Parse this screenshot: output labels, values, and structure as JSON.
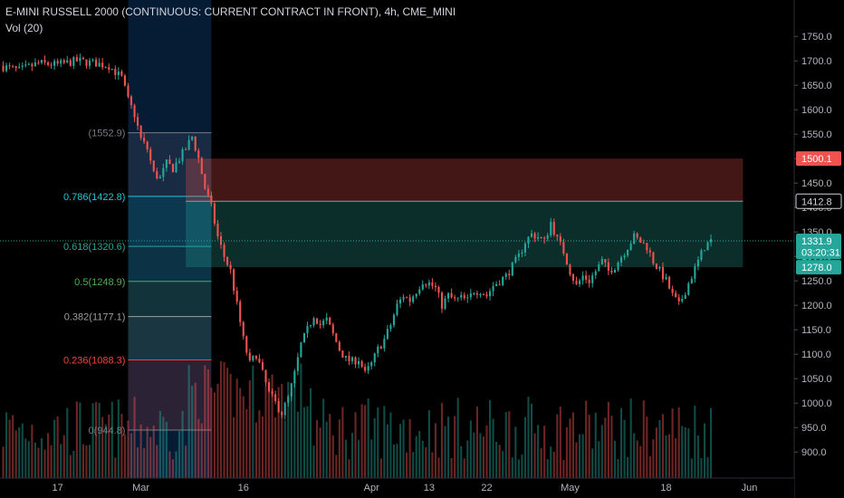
{
  "header": {
    "title": "E-MINI RUSSELL 2000 (CONTINUOUS: CURRENT CONTRACT IN FRONT), 4h, CME_MINI",
    "volume_label": "Vol (20)"
  },
  "colors": {
    "background": "#000000",
    "up": "#26a69a",
    "down": "#ef5350",
    "price_line": "#26a69a",
    "text": "#b2b5be"
  },
  "chart_data": {
    "type": "candlestick",
    "ylim": [
      880,
      1780
    ],
    "y_ticks": [
      "1750.0",
      "1700.0",
      "1650.0",
      "1600.0",
      "1550.0",
      "1500.0",
      "1450.0",
      "1400.0",
      "1350.0",
      "1300.0",
      "1250.0",
      "1200.0",
      "1150.0",
      "1100.0",
      "1050.0",
      "1000.0",
      "950.0",
      "900.0"
    ],
    "y_tick_values": [
      1750,
      1700,
      1650,
      1600,
      1550,
      1500,
      1450,
      1400,
      1350,
      1300,
      1250,
      1200,
      1150,
      1100,
      1050,
      1000,
      950,
      900
    ],
    "x_ticks": [
      "17",
      "Mar",
      "16",
      "Apr",
      "13",
      "22",
      "May",
      "18",
      "Jun"
    ],
    "x_tick_days": [
      0,
      13,
      29,
      49,
      58,
      67,
      80,
      95,
      108
    ],
    "x_range_days": [
      -9,
      115
    ],
    "price_path": [
      [
        -9,
        1690
      ],
      [
        -6,
        1680
      ],
      [
        -3,
        1695
      ],
      [
        0,
        1692
      ],
      [
        3,
        1700
      ],
      [
        6,
        1695
      ],
      [
        8,
        1690
      ],
      [
        10,
        1665
      ],
      [
        11,
        1620
      ],
      [
        12,
        1590
      ],
      [
        13,
        1540
      ],
      [
        14,
        1520
      ],
      [
        15,
        1470
      ],
      [
        16,
        1460
      ],
      [
        17,
        1490
      ],
      [
        18,
        1480
      ],
      [
        19,
        1500
      ],
      [
        20,
        1520
      ],
      [
        21,
        1545
      ],
      [
        22,
        1500
      ],
      [
        23,
        1440
      ],
      [
        24,
        1400
      ],
      [
        25,
        1340
      ],
      [
        26,
        1300
      ],
      [
        27,
        1270
      ],
      [
        28,
        1200
      ],
      [
        29,
        1130
      ],
      [
        30,
        1080
      ],
      [
        31,
        1100
      ],
      [
        32,
        1060
      ],
      [
        33,
        1020
      ],
      [
        34,
        1000
      ],
      [
        35,
        980
      ],
      [
        36,
        1010
      ],
      [
        37,
        1060
      ],
      [
        38,
        1120
      ],
      [
        39,
        1150
      ],
      [
        40,
        1180
      ],
      [
        41,
        1160
      ],
      [
        42,
        1170
      ],
      [
        43,
        1140
      ],
      [
        44,
        1110
      ],
      [
        45,
        1090
      ],
      [
        46,
        1085
      ],
      [
        47,
        1090
      ],
      [
        48,
        1060
      ],
      [
        49,
        1080
      ],
      [
        50,
        1110
      ],
      [
        51,
        1130
      ],
      [
        52,
        1160
      ],
      [
        53,
        1200
      ],
      [
        54,
        1220
      ],
      [
        55,
        1210
      ],
      [
        56,
        1230
      ],
      [
        57,
        1250
      ],
      [
        58,
        1245
      ],
      [
        59,
        1235
      ],
      [
        60,
        1200
      ],
      [
        61,
        1220
      ],
      [
        62,
        1210
      ],
      [
        63,
        1215
      ],
      [
        64,
        1210
      ],
      [
        65,
        1230
      ],
      [
        66,
        1230
      ],
      [
        67,
        1220
      ],
      [
        68,
        1240
      ],
      [
        69,
        1250
      ],
      [
        70,
        1260
      ],
      [
        71,
        1280
      ],
      [
        72,
        1300
      ],
      [
        73,
        1330
      ],
      [
        74,
        1345
      ],
      [
        75,
        1340
      ],
      [
        76,
        1330
      ],
      [
        77,
        1370
      ],
      [
        78,
        1335
      ],
      [
        79,
        1310
      ],
      [
        80,
        1270
      ],
      [
        81,
        1240
      ],
      [
        82,
        1260
      ],
      [
        83,
        1250
      ],
      [
        84,
        1270
      ],
      [
        85,
        1290
      ],
      [
        86,
        1270
      ],
      [
        87,
        1280
      ],
      [
        88,
        1300
      ],
      [
        89,
        1320
      ],
      [
        90,
        1340
      ],
      [
        91,
        1330
      ],
      [
        92,
        1320
      ],
      [
        93,
        1290
      ],
      [
        94,
        1270
      ],
      [
        95,
        1250
      ],
      [
        96,
        1220
      ],
      [
        97,
        1200
      ],
      [
        98,
        1230
      ],
      [
        99,
        1260
      ],
      [
        100,
        1290
      ],
      [
        101,
        1320
      ],
      [
        102,
        1331.9
      ]
    ],
    "fib_levels": [
      {
        "label": "(1552.9)",
        "value": 1552.9,
        "color": "#787b86"
      },
      {
        "label": "0.786(1422.8)",
        "value": 1422.8,
        "color": "#26c6da"
      },
      {
        "label": "0.618(1320.6)",
        "value": 1320.6,
        "color": "#26a69a"
      },
      {
        "label": "0.5(1248.9)",
        "value": 1248.9,
        "color": "#4caf50"
      },
      {
        "label": "0.382(1177.1)",
        "value": 1177.1,
        "color": "#9e9e9e"
      },
      {
        "label": "0.236(1088.3)",
        "value": 1088.3,
        "color": "#f44336"
      },
      {
        "label": "0(944.8)",
        "value": 944.8,
        "color": "#787b86"
      }
    ],
    "price_labels": [
      {
        "text": "1500.1",
        "value": 1500.1,
        "bg": "#ef5350",
        "fg": "#ffffff"
      },
      {
        "text": "1412.8",
        "value": 1412.8,
        "bg": "#000000",
        "fg": "#d1d4dc",
        "border": "#d1d4dc"
      },
      {
        "text": "1331.9",
        "value": 1331.9,
        "bg": "#26a69a",
        "fg": "#ffffff"
      },
      {
        "text": "03:20:31",
        "value": 1309,
        "bg": "#26a69a",
        "fg": "#ffffff"
      },
      {
        "text": "1278.0",
        "value": 1278.0,
        "bg": "#26a69a",
        "fg": "#ffffff"
      }
    ],
    "current_price": 1331.9,
    "long_position": {
      "start_day": 20,
      "end_day": 107,
      "entry": 1412.8,
      "stop": 1500.1,
      "target": 1278.0
    },
    "highlight_band_days": [
      11,
      24
    ]
  }
}
